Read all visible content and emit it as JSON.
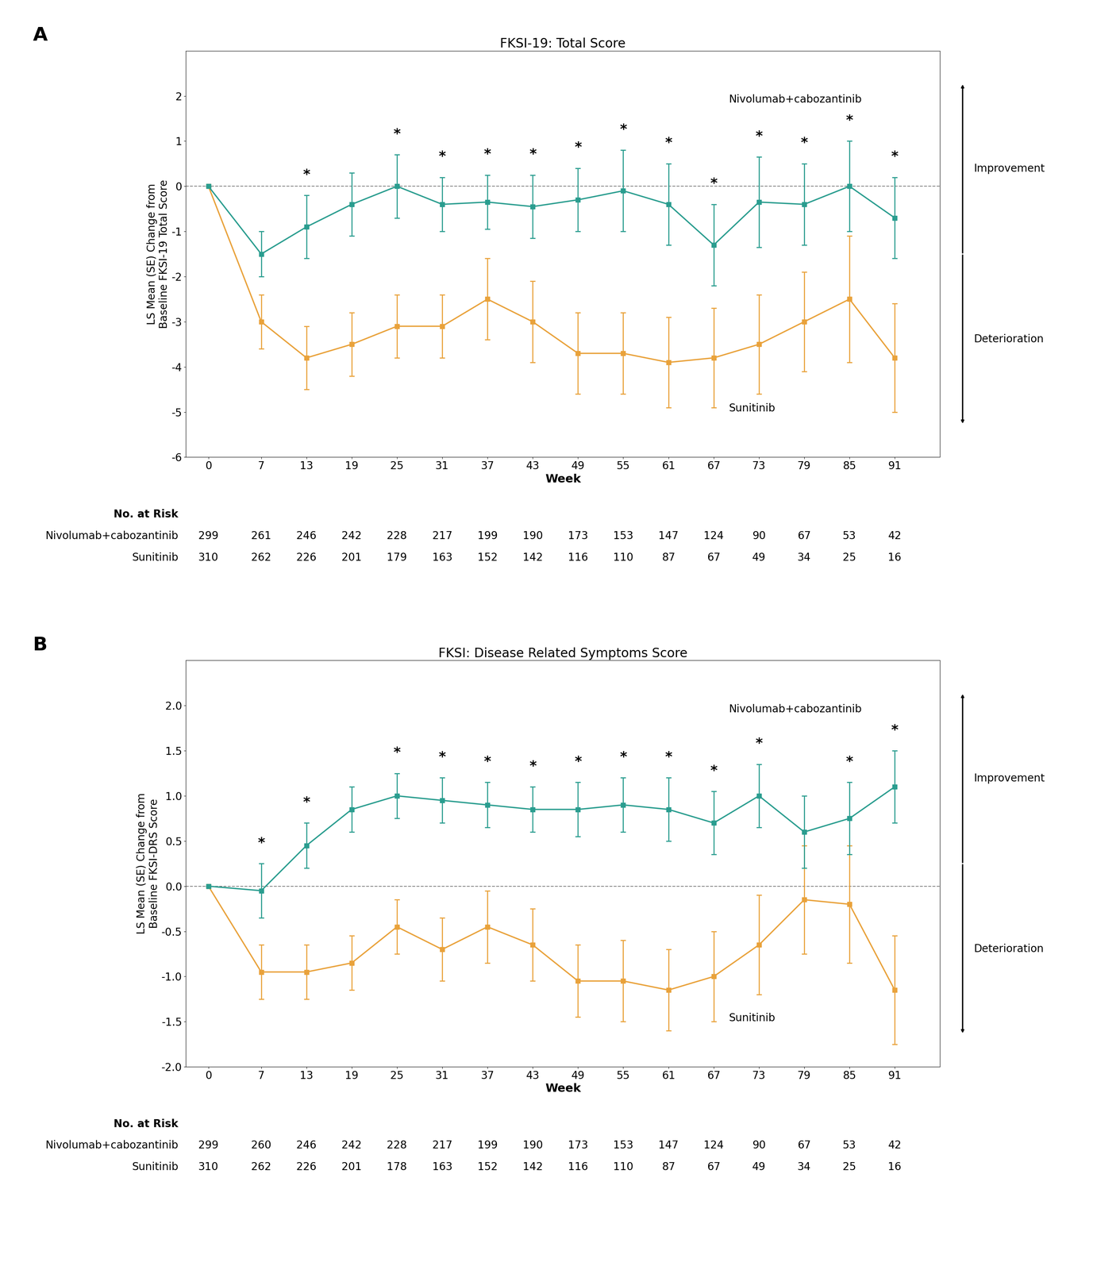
{
  "chart_data": [
    {
      "type": "line",
      "panel_label": "A",
      "title": "FKSI-19: Total Score",
      "x_label": "Week",
      "y_label": "LS Mean (SE) Change from\nBaseline FKSI-19 Total Score",
      "x": [
        0,
        7,
        13,
        19,
        25,
        31,
        37,
        43,
        49,
        55,
        61,
        67,
        73,
        79,
        85,
        91
      ],
      "xlim": [
        -3,
        97
      ],
      "xticks": [
        0,
        7,
        13,
        19,
        25,
        31,
        37,
        43,
        49,
        55,
        61,
        67,
        73,
        79,
        85,
        91
      ],
      "ylim": [
        -6,
        3
      ],
      "yticks": [
        -6,
        -5,
        -4,
        -3,
        -2,
        -1,
        0,
        1,
        2
      ],
      "grid": false,
      "reference_line_y": 0,
      "series": [
        {
          "name": "Sunitinib",
          "color": "#E9A23B",
          "marker": "square",
          "values": [
            0,
            -3.0,
            -3.8,
            -3.5,
            -3.1,
            -3.1,
            -2.5,
            -3.0,
            -3.7,
            -3.7,
            -3.9,
            -3.8,
            -3.5,
            -3.0,
            -2.5,
            -3.8
          ],
          "error_lower": [
            0,
            0.6,
            0.7,
            0.7,
            0.7,
            0.7,
            0.9,
            0.9,
            0.9,
            0.9,
            1.0,
            1.1,
            1.1,
            1.1,
            1.4,
            1.2
          ],
          "error_upper": [
            0,
            0.6,
            0.7,
            0.7,
            0.7,
            0.7,
            0.9,
            0.9,
            0.9,
            0.9,
            1.0,
            1.1,
            1.1,
            1.1,
            1.4,
            1.2
          ]
        },
        {
          "name": "Nivolumab+cabozantinib",
          "color": "#2A9D8F",
          "marker": "square",
          "values": [
            0,
            -1.5,
            -0.9,
            -0.4,
            0.0,
            -0.4,
            -0.35,
            -0.45,
            -0.3,
            -0.1,
            -0.4,
            -1.3,
            -0.35,
            -0.4,
            0.0,
            -0.7
          ],
          "error_lower": [
            0,
            0.5,
            0.7,
            0.7,
            0.7,
            0.6,
            0.6,
            0.7,
            0.7,
            0.9,
            0.9,
            0.9,
            1.0,
            0.9,
            1.0,
            0.9
          ],
          "error_upper": [
            0,
            0.5,
            0.7,
            0.7,
            0.7,
            0.6,
            0.6,
            0.7,
            0.7,
            0.9,
            0.9,
            0.9,
            1.0,
            0.9,
            1.0,
            0.9
          ],
          "significance_label": "*",
          "significance_x": [
            13,
            25,
            31,
            37,
            43,
            49,
            55,
            61,
            67,
            73,
            79,
            85,
            91
          ]
        }
      ],
      "at_risk": {
        "title": "No. at Risk",
        "rows": [
          {
            "name": "Nivolumab+cabozantinib",
            "values": [
              299,
              261,
              246,
              242,
              228,
              217,
              199,
              190,
              173,
              153,
              147,
              124,
              90,
              67,
              53,
              42
            ]
          },
          {
            "name": "Sunitinib",
            "values": [
              310,
              262,
              226,
              201,
              179,
              163,
              152,
              142,
              116,
              110,
              87,
              67,
              49,
              34,
              25,
              16
            ]
          }
        ]
      },
      "direction_labels": {
        "up": "Improvement",
        "down": "Deterioration"
      }
    },
    {
      "type": "line",
      "panel_label": "B",
      "title": "FKSI: Disease Related Symptoms Score",
      "x_label": "Week",
      "y_label": "LS Mean (SE) Change from\nBaseline FKSI-DRS Score",
      "x": [
        0,
        7,
        13,
        19,
        25,
        31,
        37,
        43,
        49,
        55,
        61,
        67,
        73,
        79,
        85,
        91
      ],
      "xlim": [
        -3,
        97
      ],
      "xticks": [
        0,
        7,
        13,
        19,
        25,
        31,
        37,
        43,
        49,
        55,
        61,
        67,
        73,
        79,
        85,
        91
      ],
      "ylim": [
        -2.0,
        2.5
      ],
      "yticks": [
        -2.0,
        -1.5,
        -1.0,
        -0.5,
        0.0,
        0.5,
        1.0,
        1.5,
        2.0
      ],
      "grid": false,
      "reference_line_y": 0,
      "series": [
        {
          "name": "Sunitinib",
          "color": "#E9A23B",
          "marker": "square",
          "values": [
            0,
            -0.95,
            -0.95,
            -0.85,
            -0.45,
            -0.7,
            -0.45,
            -0.65,
            -1.05,
            -1.05,
            -1.15,
            -1.0,
            -0.65,
            -0.15,
            -0.2,
            -1.15
          ],
          "error_lower": [
            0,
            0.3,
            0.3,
            0.3,
            0.3,
            0.35,
            0.4,
            0.4,
            0.4,
            0.45,
            0.45,
            0.5,
            0.55,
            0.6,
            0.65,
            0.6
          ],
          "error_upper": [
            0,
            0.3,
            0.3,
            0.3,
            0.3,
            0.35,
            0.4,
            0.4,
            0.4,
            0.45,
            0.45,
            0.5,
            0.55,
            0.6,
            0.65,
            0.6
          ]
        },
        {
          "name": "Nivolumab+cabozantinib",
          "color": "#2A9D8F",
          "marker": "square",
          "values": [
            0,
            -0.05,
            0.45,
            0.85,
            1.0,
            0.95,
            0.9,
            0.85,
            0.85,
            0.9,
            0.85,
            0.7,
            1.0,
            0.6,
            0.75,
            1.1
          ],
          "error_lower": [
            0,
            0.3,
            0.25,
            0.25,
            0.25,
            0.25,
            0.25,
            0.25,
            0.3,
            0.3,
            0.35,
            0.35,
            0.35,
            0.4,
            0.4,
            0.4
          ],
          "error_upper": [
            0,
            0.3,
            0.25,
            0.25,
            0.25,
            0.25,
            0.25,
            0.25,
            0.3,
            0.3,
            0.35,
            0.35,
            0.35,
            0.4,
            0.4,
            0.4
          ],
          "significance_label": "*",
          "significance_x": [
            7,
            13,
            25,
            31,
            37,
            43,
            49,
            55,
            61,
            67,
            73,
            85,
            91
          ]
        }
      ],
      "at_risk": {
        "title": "No. at Risk",
        "rows": [
          {
            "name": "Nivolumab+cabozantinib",
            "values": [
              299,
              260,
              246,
              242,
              228,
              217,
              199,
              190,
              173,
              153,
              147,
              124,
              90,
              67,
              53,
              42
            ]
          },
          {
            "name": "Sunitinib",
            "values": [
              310,
              262,
              226,
              201,
              178,
              163,
              152,
              142,
              116,
              110,
              87,
              67,
              49,
              34,
              25,
              16
            ]
          }
        ]
      },
      "direction_labels": {
        "up": "Improvement",
        "down": "Deterioration"
      }
    }
  ]
}
